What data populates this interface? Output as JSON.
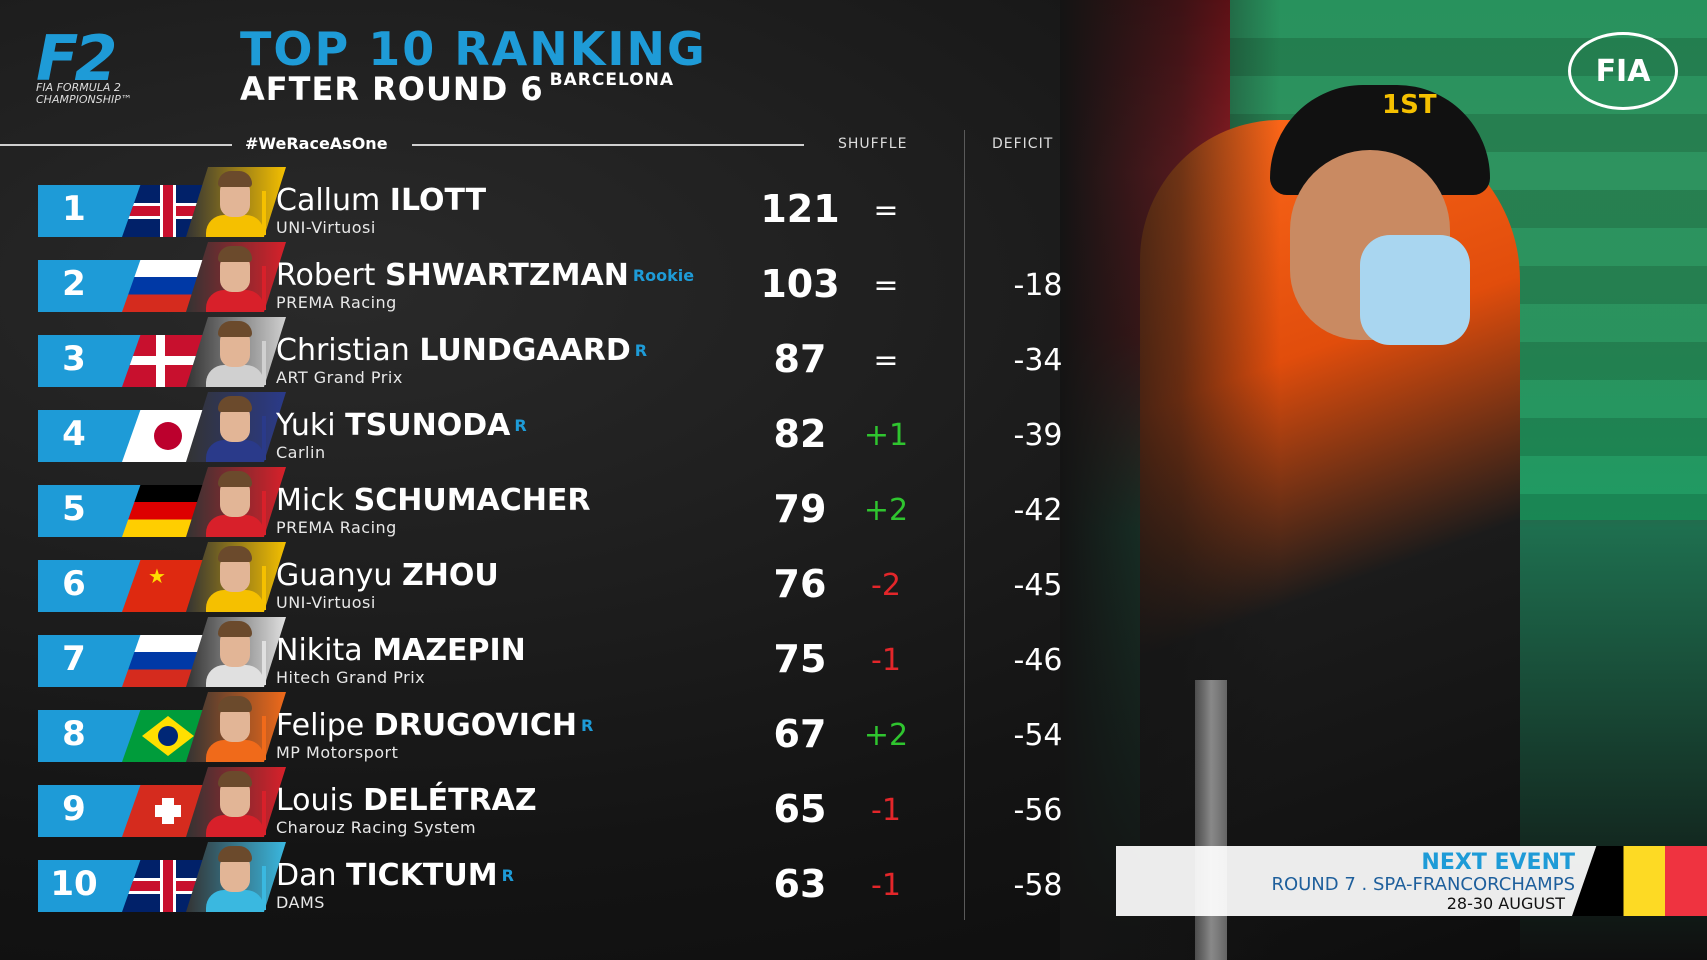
{
  "header": {
    "logo_text": "F2",
    "logo_sub": "FIA FORMULA 2 CHAMPIONSHIP™",
    "title": "TOP 10 RANKING",
    "subtitle": "AFTER ROUND 6",
    "location": "BARCELONA",
    "hashtag": "#WeRaceAsOne",
    "fia_logo": "FIA",
    "col_shuffle": "SHUFFLE",
    "col_deficit": "DEFICIT"
  },
  "photo": {
    "cap_text": "1ST"
  },
  "drivers": [
    {
      "pos": "1",
      "first": "Callum",
      "last": "ILOTT",
      "tag": "",
      "team": "UNI-Virtuosi",
      "points": "121",
      "shuffle": "=",
      "deficit": "",
      "flag": "gb",
      "team_color": "#f5c000",
      "shuffle_color": "#ffffff"
    },
    {
      "pos": "2",
      "first": "Robert",
      "last": "SHWARTZMAN",
      "tag": "Rookie",
      "team": "PREMA Racing",
      "points": "103",
      "shuffle": "=",
      "deficit": "-18",
      "flag": "ru",
      "team_color": "#d8202a",
      "shuffle_color": "#ffffff"
    },
    {
      "pos": "3",
      "first": "Christian",
      "last": "LUNDGAARD",
      "tag": "R",
      "team": "ART Grand Prix",
      "points": "87",
      "shuffle": "=",
      "deficit": "-34",
      "flag": "dk",
      "team_color": "#d0d0d0",
      "shuffle_color": "#ffffff"
    },
    {
      "pos": "4",
      "first": "Yuki",
      "last": "TSUNODA",
      "tag": "R",
      "team": "Carlin",
      "points": "82",
      "shuffle": "+1",
      "deficit": "-39",
      "flag": "jp",
      "team_color": "#2a3a8a",
      "shuffle_color": "#2fc52f"
    },
    {
      "pos": "5",
      "first": "Mick",
      "last": "SCHUMACHER",
      "tag": "",
      "team": "PREMA Racing",
      "points": "79",
      "shuffle": "+2",
      "deficit": "-42",
      "flag": "de",
      "team_color": "#d8202a",
      "shuffle_color": "#2fc52f"
    },
    {
      "pos": "6",
      "first": "Guanyu",
      "last": "ZHOU",
      "tag": "",
      "team": "UNI-Virtuosi",
      "points": "76",
      "shuffle": "-2",
      "deficit": "-45",
      "flag": "cn",
      "team_color": "#f5c000",
      "shuffle_color": "#e3262a"
    },
    {
      "pos": "7",
      "first": "Nikita",
      "last": "MAZEPIN",
      "tag": "",
      "team": "Hitech Grand Prix",
      "points": "75",
      "shuffle": "-1",
      "deficit": "-46",
      "flag": "ru",
      "team_color": "#e0e0e0",
      "shuffle_color": "#e3262a"
    },
    {
      "pos": "8",
      "first": "Felipe",
      "last": "DRUGOVICH",
      "tag": "R",
      "team": "MP Motorsport",
      "points": "67",
      "shuffle": "+2",
      "deficit": "-54",
      "flag": "br",
      "team_color": "#f06a1a",
      "shuffle_color": "#2fc52f"
    },
    {
      "pos": "9",
      "first": "Louis",
      "last": "DELÉTRAZ",
      "tag": "",
      "team": "Charouz Racing System",
      "points": "65",
      "shuffle": "-1",
      "deficit": "-56",
      "flag": "ch",
      "team_color": "#d8202a",
      "shuffle_color": "#e3262a"
    },
    {
      "pos": "10",
      "first": "Dan",
      "last": "TICKTUM",
      "tag": "R",
      "team": "DAMS",
      "points": "63",
      "shuffle": "-1",
      "deficit": "-58",
      "flag": "gb",
      "team_color": "#3ab8e0",
      "shuffle_color": "#e3262a"
    }
  ],
  "next_event": {
    "label": "NEXT EVENT",
    "round": "ROUND 7 . SPA-FRANCORCHAMPS",
    "dates": "28-30 AUGUST"
  }
}
